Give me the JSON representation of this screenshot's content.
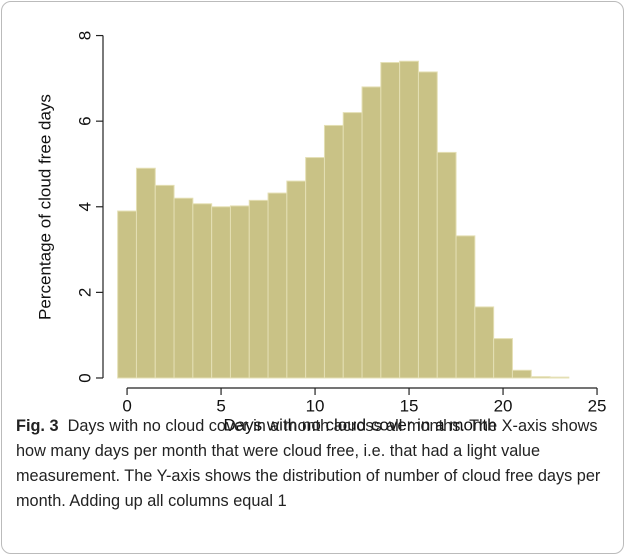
{
  "chart_data": {
    "type": "histogram",
    "xlabel": "Days with no cloud cover in a month",
    "ylabel": "Percentage of cloud free days",
    "bins": [
      -0.5,
      0.5,
      1.5,
      2.5,
      3.5,
      4.5,
      5.5,
      6.5,
      7.5,
      8.5,
      9.5,
      10.5,
      11.5,
      12.5,
      13.5,
      14.5,
      15.5,
      16.5,
      17.5,
      18.5,
      19.5,
      20.5,
      21.5,
      22.5,
      23.5
    ],
    "values": [
      3.9,
      4.9,
      4.5,
      4.2,
      4.07,
      4.0,
      4.02,
      4.15,
      4.32,
      4.6,
      5.15,
      5.9,
      6.2,
      6.8,
      7.37,
      7.4,
      7.15,
      5.27,
      3.32,
      1.66,
      0.92,
      0.18,
      0.03,
      0.02
    ],
    "color": "#c9c286",
    "xlim": [
      -1.28,
      25.53
    ],
    "ylim": [
      -0.234,
      8.2
    ],
    "xticks": [
      0,
      5,
      10,
      15,
      20,
      25
    ],
    "yticks": [
      0,
      2,
      4,
      6,
      8
    ]
  },
  "caption": {
    "label": "Fig. 3",
    "text": "Days with no cloud cover in a month across all months. The X-axis shows how many days per month that were cloud free, i.e. that had a light value measurement. The Y-axis shows the distribution of number of cloud free days per month. Adding up all columns equal 1"
  }
}
